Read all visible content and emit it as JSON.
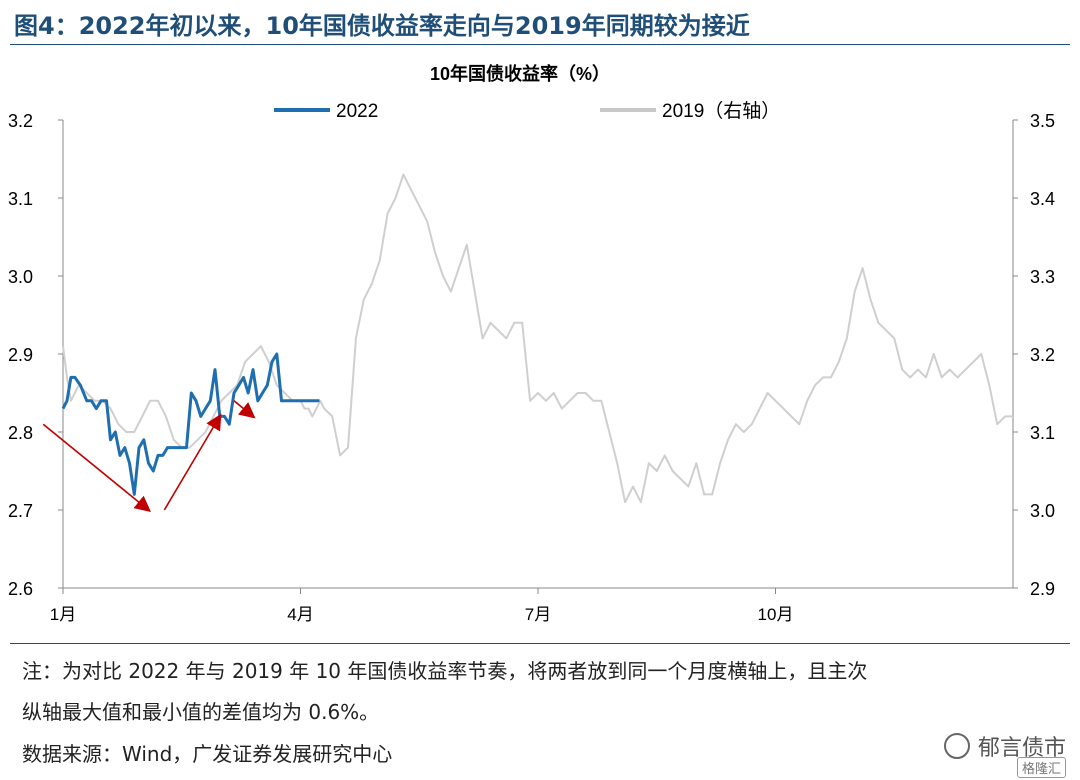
{
  "figure": {
    "title": "图4：2022年初以来，10年国债收益率走向与2019年同期较为接近",
    "note_line1": "注：为对比 2022 年与 2019 年 10 年国债收益率节奏，将两者放到同一个月度横轴上，且主次",
    "note_line2": "纵轴最大值和最小值的差值均为 0.6%。",
    "source": "数据来源：Wind，广发证券发展研究中心",
    "watermark": "郁言债市",
    "watermark_sub": "格隆汇"
  },
  "chart_data": {
    "type": "line",
    "title": "10年国债收益率（%）",
    "xlabel": "",
    "x_ticks": [
      "1月",
      "4月",
      "7月",
      "10月"
    ],
    "x_tick_positions_month": [
      0,
      3,
      6,
      9
    ],
    "xlim_month": [
      0,
      12
    ],
    "ylim_left": [
      2.6,
      3.2
    ],
    "ylim_right": [
      2.9,
      3.5
    ],
    "yticks_left": [
      "2.6",
      "2.7",
      "2.8",
      "2.9",
      "3.0",
      "3.1",
      "3.2"
    ],
    "yticks_right": [
      "2.9",
      "3.0",
      "3.1",
      "3.2",
      "3.3",
      "3.4",
      "3.5"
    ],
    "grid": false,
    "legend_position": "top",
    "colors": {
      "2022": "#1f6fb0",
      "2019": "#cfcfcf",
      "arrow": "#c00000"
    },
    "series": [
      {
        "name": "2022",
        "axis": "left",
        "x": [
          0.0,
          0.05,
          0.1,
          0.15,
          0.22,
          0.3,
          0.36,
          0.42,
          0.48,
          0.55,
          0.6,
          0.66,
          0.72,
          0.78,
          0.84,
          0.9,
          0.96,
          1.02,
          1.08,
          1.14,
          1.2,
          1.26,
          1.32,
          1.38,
          1.44,
          1.5,
          1.56,
          1.62,
          1.68,
          1.74,
          1.8,
          1.86,
          1.92,
          1.98,
          2.04,
          2.1,
          2.16,
          2.22,
          2.28,
          2.34,
          2.4,
          2.46,
          2.52,
          2.58,
          2.64,
          2.7,
          2.76,
          2.82,
          2.88,
          2.94,
          3.0,
          3.06,
          3.12,
          3.18,
          3.24
        ],
        "y": [
          2.83,
          2.84,
          2.87,
          2.87,
          2.86,
          2.84,
          2.84,
          2.83,
          2.84,
          2.84,
          2.79,
          2.8,
          2.77,
          2.78,
          2.76,
          2.72,
          2.78,
          2.79,
          2.76,
          2.75,
          2.77,
          2.77,
          2.78,
          2.78,
          2.78,
          2.78,
          2.78,
          2.85,
          2.84,
          2.82,
          2.83,
          2.84,
          2.88,
          2.82,
          2.82,
          2.81,
          2.85,
          2.86,
          2.87,
          2.85,
          2.88,
          2.84,
          2.85,
          2.86,
          2.89,
          2.9,
          2.84,
          2.84,
          2.84,
          2.84,
          2.84,
          2.84,
          2.84,
          2.84,
          2.84
        ]
      },
      {
        "name": "2019",
        "axis": "right",
        "x": [
          0.0,
          0.05,
          0.1,
          0.2,
          0.3,
          0.4,
          0.5,
          0.6,
          0.7,
          0.8,
          0.9,
          1.0,
          1.1,
          1.2,
          1.3,
          1.4,
          1.5,
          1.6,
          1.7,
          1.8,
          1.9,
          2.0,
          2.1,
          2.2,
          2.3,
          2.4,
          2.5,
          2.6,
          2.7,
          2.8,
          2.9,
          3.0,
          3.05,
          3.1,
          3.15,
          3.2,
          3.25,
          3.3,
          3.4,
          3.5,
          3.6,
          3.7,
          3.8,
          3.9,
          4.0,
          4.1,
          4.2,
          4.3,
          4.4,
          4.5,
          4.6,
          4.7,
          4.8,
          4.9,
          5.0,
          5.1,
          5.2,
          5.3,
          5.4,
          5.5,
          5.6,
          5.7,
          5.8,
          5.9,
          6.0,
          6.1,
          6.2,
          6.3,
          6.4,
          6.5,
          6.6,
          6.7,
          6.8,
          6.9,
          7.0,
          7.1,
          7.2,
          7.3,
          7.4,
          7.5,
          7.6,
          7.7,
          7.8,
          7.9,
          8.0,
          8.1,
          8.2,
          8.3,
          8.4,
          8.5,
          8.6,
          8.7,
          8.8,
          8.9,
          9.0,
          9.1,
          9.2,
          9.3,
          9.4,
          9.5,
          9.6,
          9.7,
          9.8,
          9.9,
          10.0,
          10.1,
          10.2,
          10.3,
          10.4,
          10.5,
          10.6,
          10.7,
          10.8,
          10.9,
          11.0,
          11.1,
          11.2,
          11.3,
          11.4,
          11.5,
          11.6,
          11.7,
          11.8,
          11.9,
          12.0
        ],
        "y": [
          3.21,
          3.17,
          3.14,
          3.16,
          3.15,
          3.14,
          3.14,
          3.13,
          3.11,
          3.1,
          3.1,
          3.12,
          3.14,
          3.14,
          3.12,
          3.09,
          3.08,
          3.08,
          3.09,
          3.1,
          3.12,
          3.14,
          3.15,
          3.16,
          3.19,
          3.2,
          3.21,
          3.19,
          3.16,
          3.15,
          3.14,
          3.14,
          3.13,
          3.13,
          3.12,
          3.13,
          3.14,
          3.13,
          3.12,
          3.07,
          3.08,
          3.22,
          3.27,
          3.29,
          3.32,
          3.38,
          3.4,
          3.43,
          3.41,
          3.39,
          3.37,
          3.33,
          3.3,
          3.28,
          3.31,
          3.34,
          3.28,
          3.22,
          3.24,
          3.23,
          3.22,
          3.24,
          3.24,
          3.14,
          3.15,
          3.14,
          3.15,
          3.13,
          3.14,
          3.15,
          3.15,
          3.14,
          3.14,
          3.1,
          3.06,
          3.01,
          3.03,
          3.01,
          3.06,
          3.05,
          3.07,
          3.05,
          3.04,
          3.03,
          3.06,
          3.02,
          3.02,
          3.06,
          3.09,
          3.11,
          3.1,
          3.11,
          3.13,
          3.15,
          3.14,
          3.13,
          3.12,
          3.11,
          3.14,
          3.16,
          3.17,
          3.17,
          3.19,
          3.22,
          3.28,
          3.31,
          3.27,
          3.24,
          3.23,
          3.22,
          3.18,
          3.17,
          3.18,
          3.17,
          3.2,
          3.17,
          3.18,
          3.17,
          3.18,
          3.19,
          3.2,
          3.16,
          3.11,
          3.12,
          3.12
        ]
      }
    ],
    "arrows": [
      {
        "from": [
          -0.25,
          2.81
        ],
        "to": [
          1.08,
          2.7
        ]
      },
      {
        "from": [
          1.28,
          2.7
        ],
        "to": [
          1.98,
          2.82
        ]
      },
      {
        "from": [
          2.16,
          2.84
        ],
        "to": [
          2.4,
          2.82
        ]
      }
    ]
  }
}
